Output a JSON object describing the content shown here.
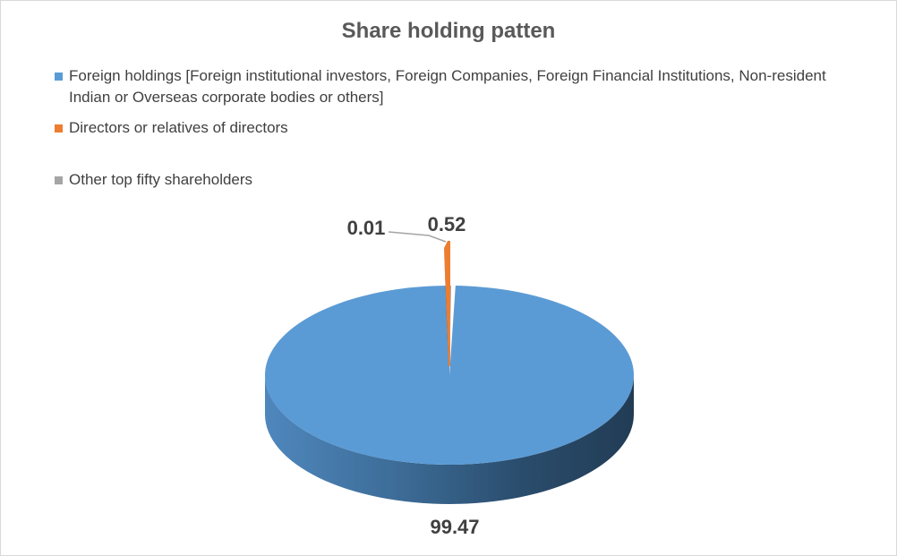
{
  "chart_data": {
    "type": "pie",
    "title": "Share holding patten",
    "legend_position": "top",
    "categories": [
      "Foreign holdings [Foreign institutional investors, Foreign Companies, Foreign Financial Institutions, Non-resident Indian or Overseas corporate bodies or others]",
      "Directors or relatives of directors",
      "Other top fifty shareholders"
    ],
    "values": [
      99.47,
      0.52,
      0.01
    ],
    "data_labels": [
      "99.47",
      "0.52",
      "0.01"
    ],
    "colors": [
      "#5b9bd5",
      "#ed7d31",
      "#a5a5a5"
    ],
    "style": "3d"
  }
}
